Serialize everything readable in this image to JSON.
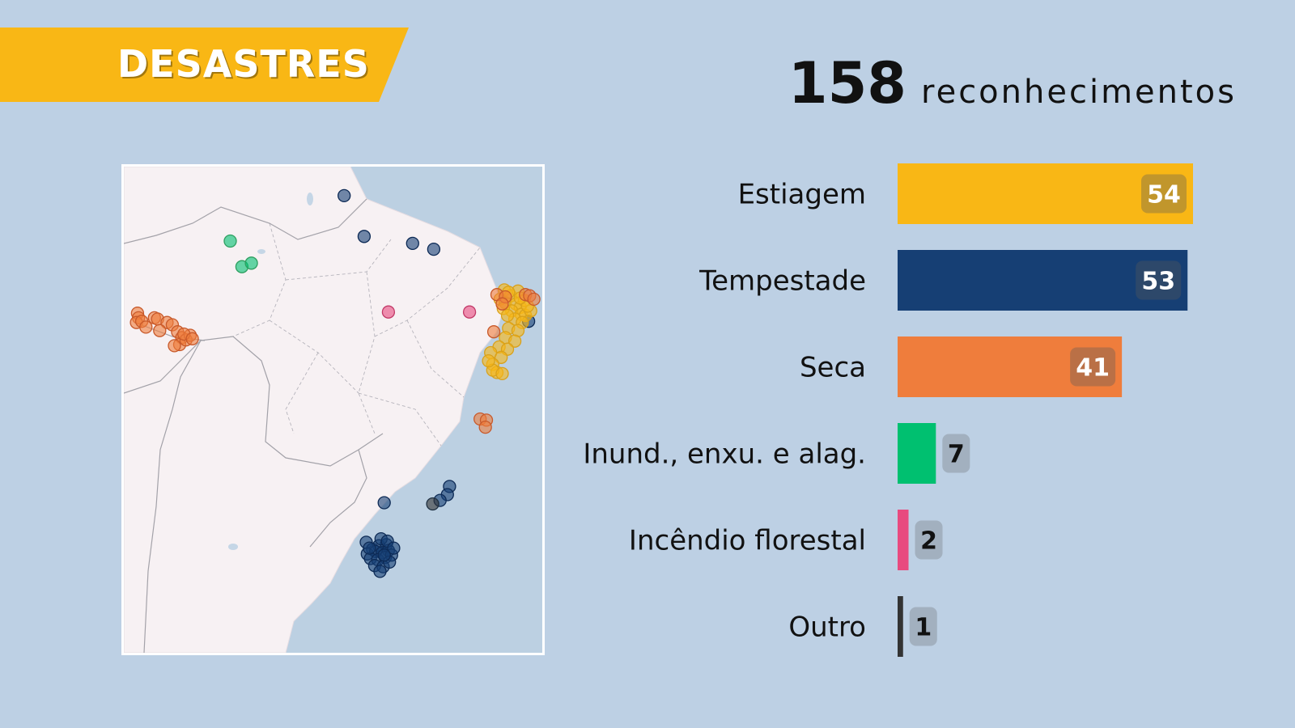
{
  "banner": {
    "title": "DESASTRES"
  },
  "headline": {
    "count": "158",
    "label": "reconhecimentos"
  },
  "colors": {
    "background": "#bdd0e4",
    "banner": "#f9b715",
    "estiagem": "#f9b715",
    "tempestade": "#163f74",
    "seca": "#ef7d3c",
    "inundacao": "#00c070",
    "incendio": "#e84a7f",
    "outro": "#333333"
  },
  "chart_data": {
    "type": "bar",
    "orientation": "horizontal",
    "categories": [
      "Estiagem",
      "Tempestade",
      "Seca",
      "Inund., enxu. e alag.",
      "Incêndio florestal",
      "Outro"
    ],
    "values": [
      54,
      53,
      41,
      7,
      2,
      1
    ],
    "colors": [
      "#f9b715",
      "#163f74",
      "#ef7d3c",
      "#00c070",
      "#e84a7f",
      "#333333"
    ],
    "xlim": [
      0,
      54
    ]
  },
  "map_points": [
    {
      "type": "tempestade",
      "lon": -53.1,
      "lat": 3.3
    },
    {
      "type": "tempestade",
      "lon": -51.2,
      "lat": -0.2
    },
    {
      "type": "tempestade",
      "lon": -46.6,
      "lat": -0.8
    },
    {
      "type": "tempestade",
      "lon": -44.6,
      "lat": -1.3
    },
    {
      "type": "tempestade",
      "lon": -35.6,
      "lat": -7.5
    },
    {
      "type": "tempestade",
      "lon": -43.1,
      "lat": -21.7
    },
    {
      "type": "tempestade",
      "lon": -43.3,
      "lat": -22.4
    },
    {
      "type": "tempestade",
      "lon": -44.0,
      "lat": -22.9
    },
    {
      "type": "tempestade",
      "lon": -49.3,
      "lat": -23.1
    },
    {
      "type": "tempestade",
      "lon": -51.0,
      "lat": -26.5
    },
    {
      "type": "tempestade",
      "lon": -50.4,
      "lat": -27.1
    },
    {
      "type": "tempestade",
      "lon": -49.8,
      "lat": -26.8
    },
    {
      "type": "tempestade",
      "lon": -49.1,
      "lat": -26.7
    },
    {
      "type": "tempestade",
      "lon": -50.9,
      "lat": -27.5
    },
    {
      "type": "tempestade",
      "lon": -50.1,
      "lat": -27.3
    },
    {
      "type": "tempestade",
      "lon": -49.5,
      "lat": -27.4
    },
    {
      "type": "tempestade",
      "lon": -48.9,
      "lat": -27.2
    },
    {
      "type": "tempestade",
      "lon": -50.6,
      "lat": -27.9
    },
    {
      "type": "tempestade",
      "lon": -49.9,
      "lat": -28.0
    },
    {
      "type": "tempestade",
      "lon": -49.2,
      "lat": -27.8
    },
    {
      "type": "tempestade",
      "lon": -48.6,
      "lat": -27.6
    },
    {
      "type": "tempestade",
      "lon": -50.2,
      "lat": -28.5
    },
    {
      "type": "tempestade",
      "lon": -49.4,
      "lat": -28.6
    },
    {
      "type": "tempestade",
      "lon": -48.8,
      "lat": -28.2
    },
    {
      "type": "tempestade",
      "lon": -49.7,
      "lat": -29.0
    },
    {
      "type": "tempestade",
      "lon": -49.6,
      "lat": -26.2
    },
    {
      "type": "tempestade",
      "lon": -49.0,
      "lat": -26.4
    },
    {
      "type": "tempestade",
      "lon": -48.4,
      "lat": -27.0
    },
    {
      "type": "tempestade",
      "lon": -49.3,
      "lat": -27.6
    },
    {
      "type": "tempestade",
      "lon": -50.7,
      "lat": -27.0
    },
    {
      "type": "estiagem",
      "lon": -37.9,
      "lat": -4.8
    },
    {
      "type": "estiagem",
      "lon": -37.3,
      "lat": -5.3
    },
    {
      "type": "estiagem",
      "lon": -38.3,
      "lat": -5.6
    },
    {
      "type": "estiagem",
      "lon": -37.8,
      "lat": -5.9
    },
    {
      "type": "estiagem",
      "lon": -36.8,
      "lat": -6.0
    },
    {
      "type": "estiagem",
      "lon": -36.4,
      "lat": -6.3
    },
    {
      "type": "estiagem",
      "lon": -37.2,
      "lat": -6.6
    },
    {
      "type": "estiagem",
      "lon": -36.3,
      "lat": -6.9
    },
    {
      "type": "estiagem",
      "lon": -35.9,
      "lat": -7.0
    },
    {
      "type": "estiagem",
      "lon": -35.4,
      "lat": -6.6
    },
    {
      "type": "estiagem",
      "lon": -36.9,
      "lat": -7.3
    },
    {
      "type": "estiagem",
      "lon": -36.2,
      "lat": -7.6
    },
    {
      "type": "estiagem",
      "lon": -37.5,
      "lat": -8.1
    },
    {
      "type": "estiagem",
      "lon": -36.6,
      "lat": -8.3
    },
    {
      "type": "estiagem",
      "lon": -37.8,
      "lat": -8.9
    },
    {
      "type": "estiagem",
      "lon": -36.9,
      "lat": -9.2
    },
    {
      "type": "estiagem",
      "lon": -38.4,
      "lat": -9.7
    },
    {
      "type": "estiagem",
      "lon": -37.6,
      "lat": -9.9
    },
    {
      "type": "estiagem",
      "lon": -39.2,
      "lat": -10.2
    },
    {
      "type": "estiagem",
      "lon": -38.2,
      "lat": -10.6
    },
    {
      "type": "estiagem",
      "lon": -39.0,
      "lat": -11.2
    },
    {
      "type": "estiagem",
      "lon": -38.6,
      "lat": -11.9
    },
    {
      "type": "estiagem",
      "lon": -39.0,
      "lat": -11.7
    },
    {
      "type": "estiagem",
      "lon": -38.1,
      "lat": -12.0
    },
    {
      "type": "estiagem",
      "lon": -36.6,
      "lat": -4.9
    },
    {
      "type": "estiagem",
      "lon": -36.0,
      "lat": -5.7
    },
    {
      "type": "estiagem",
      "lon": -35.7,
      "lat": -6.2
    },
    {
      "type": "estiagem",
      "lon": -36.4,
      "lat": -5.5
    },
    {
      "type": "estiagem",
      "lon": -37.5,
      "lat": -5.0
    },
    {
      "type": "estiagem",
      "lon": -38.0,
      "lat": -6.4
    },
    {
      "type": "estiagem",
      "lon": -37.6,
      "lat": -7.0
    },
    {
      "type": "estiagem",
      "lon": -39.4,
      "lat": -10.9
    },
    {
      "type": "seca",
      "lon": -38.6,
      "lat": -5.2
    },
    {
      "type": "seca",
      "lon": -37.8,
      "lat": -5.4
    },
    {
      "type": "seca",
      "lon": -35.9,
      "lat": -5.2
    },
    {
      "type": "seca",
      "lon": -35.5,
      "lat": -5.3
    },
    {
      "type": "seca",
      "lon": -35.1,
      "lat": -5.6
    },
    {
      "type": "seca",
      "lon": -38.1,
      "lat": -6.0
    },
    {
      "type": "seca",
      "lon": -38.9,
      "lat": -8.4
    },
    {
      "type": "seca",
      "lon": -40.2,
      "lat": -15.9
    },
    {
      "type": "seca",
      "lon": -39.6,
      "lat": -16.0
    },
    {
      "type": "seca",
      "lon": -39.7,
      "lat": -16.6
    },
    {
      "type": "seca",
      "lon": -72.7,
      "lat": -6.8
    },
    {
      "type": "seca",
      "lon": -72.6,
      "lat": -7.2
    },
    {
      "type": "seca",
      "lon": -72.8,
      "lat": -7.6
    },
    {
      "type": "seca",
      "lon": -72.3,
      "lat": -7.5
    },
    {
      "type": "seca",
      "lon": -71.9,
      "lat": -8.0
    },
    {
      "type": "seca",
      "lon": -71.1,
      "lat": -7.2
    },
    {
      "type": "seca",
      "lon": -70.8,
      "lat": -7.3
    },
    {
      "type": "seca",
      "lon": -69.9,
      "lat": -7.6
    },
    {
      "type": "seca",
      "lon": -70.6,
      "lat": -8.3
    },
    {
      "type": "seca",
      "lon": -69.4,
      "lat": -7.8
    },
    {
      "type": "seca",
      "lon": -68.9,
      "lat": -8.4
    },
    {
      "type": "seca",
      "lon": -68.5,
      "lat": -8.9
    },
    {
      "type": "seca",
      "lon": -68.7,
      "lat": -9.5
    },
    {
      "type": "seca",
      "lon": -68.1,
      "lat": -9.1
    },
    {
      "type": "seca",
      "lon": -67.7,
      "lat": -8.7
    },
    {
      "type": "seca",
      "lon": -68.3,
      "lat": -8.6
    },
    {
      "type": "seca",
      "lon": -67.5,
      "lat": -9.0
    },
    {
      "type": "seca",
      "lon": -69.2,
      "lat": -9.6
    },
    {
      "type": "inundacao",
      "lon": -63.9,
      "lat": -0.6
    },
    {
      "type": "inundacao",
      "lon": -62.8,
      "lat": -2.8
    },
    {
      "type": "inundacao",
      "lon": -61.9,
      "lat": -2.5
    },
    {
      "type": "incendio",
      "lon": -48.9,
      "lat": -6.7
    },
    {
      "type": "incendio",
      "lon": -41.2,
      "lat": -6.7
    },
    {
      "type": "outro",
      "lon": -44.7,
      "lat": -23.2
    }
  ]
}
